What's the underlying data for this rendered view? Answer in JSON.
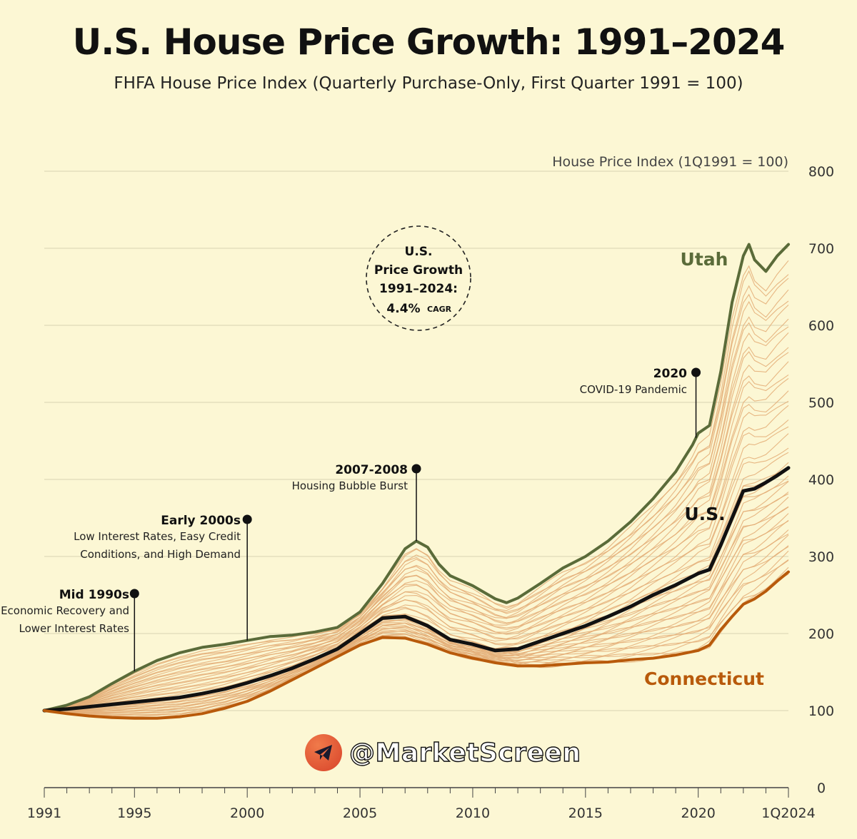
{
  "title": "U.S. House Price Growth: 1991–2024",
  "subtitle": "FHFA House Price Index (Quarterly Purchase-Only, First Quarter 1991 = 100)",
  "watermark": "@MarketScreen",
  "colors": {
    "background": "#fcf7d4",
    "us": "#111111",
    "utah": "#5a6b39",
    "connecticut": "#b85a0b",
    "states": "#e3ac74",
    "grid": "#d9d3b2"
  },
  "chart_data": {
    "type": "line",
    "title": "U.S. House Price Growth: 1991–2024",
    "ylabel": "House Price Index (1Q1991 = 100)",
    "xlabel": "",
    "xlim": [
      1991,
      2024
    ],
    "ylim": [
      0,
      800
    ],
    "yticks": [
      0,
      100,
      200,
      300,
      400,
      500,
      600,
      700,
      800
    ],
    "xticks": [
      {
        "value": 1991,
        "label": "1991"
      },
      {
        "value": 1995,
        "label": "1995"
      },
      {
        "value": 2000,
        "label": "2000"
      },
      {
        "value": 2005,
        "label": "2005"
      },
      {
        "value": 2010,
        "label": "2010"
      },
      {
        "value": 2015,
        "label": "2015"
      },
      {
        "value": 2020,
        "label": "2020"
      },
      {
        "value": 2024,
        "label": "1Q2024"
      }
    ],
    "grid": true,
    "series": [
      {
        "name": "Utah",
        "label": "Utah",
        "x": [
          1991,
          1992,
          1993,
          1994,
          1995,
          1996,
          1997,
          1998,
          1999,
          2000,
          2001,
          2002,
          2003,
          2004,
          2005,
          2006,
          2007,
          2007.5,
          2008,
          2008.5,
          2009,
          2010,
          2011,
          2011.5,
          2012,
          2013,
          2014,
          2015,
          2016,
          2017,
          2018,
          2019,
          2019.75,
          2020,
          2020.5,
          2021,
          2021.5,
          2022,
          2022.25,
          2022.5,
          2023,
          2023.5,
          2024
        ],
        "values": [
          100,
          107,
          118,
          135,
          151,
          165,
          175,
          182,
          186,
          191,
          196,
          198,
          202,
          208,
          228,
          265,
          310,
          320,
          312,
          290,
          275,
          262,
          245,
          240,
          246,
          265,
          285,
          300,
          320,
          345,
          375,
          410,
          445,
          460,
          470,
          540,
          630,
          690,
          705,
          685,
          670,
          690,
          705
        ]
      },
      {
        "name": "U.S.",
        "label": "U.S.",
        "x": [
          1991,
          1992,
          1993,
          1994,
          1995,
          1996,
          1997,
          1998,
          1999,
          2000,
          2001,
          2002,
          2003,
          2004,
          2005,
          2006,
          2007,
          2008,
          2009,
          2010,
          2011,
          2012,
          2013,
          2014,
          2015,
          2016,
          2017,
          2018,
          2019,
          2020,
          2020.5,
          2021,
          2021.5,
          2022,
          2022.5,
          2023,
          2023.5,
          2024
        ],
        "values": [
          100,
          102,
          105,
          108,
          111,
          114,
          117,
          122,
          128,
          136,
          145,
          155,
          167,
          180,
          200,
          220,
          222,
          210,
          192,
          186,
          178,
          180,
          190,
          200,
          210,
          222,
          235,
          250,
          263,
          278,
          283,
          315,
          350,
          385,
          388,
          396,
          405,
          415
        ]
      },
      {
        "name": "Connecticut",
        "label": "Connecticut",
        "x": [
          1991,
          1992,
          1993,
          1994,
          1995,
          1996,
          1997,
          1998,
          1999,
          2000,
          2001,
          2002,
          2003,
          2004,
          2005,
          2006,
          2007,
          2008,
          2009,
          2010,
          2011,
          2012,
          2013,
          2014,
          2015,
          2016,
          2017,
          2018,
          2019,
          2020,
          2020.5,
          2021,
          2021.5,
          2022,
          2022.5,
          2023,
          2023.5,
          2024
        ],
        "values": [
          100,
          96,
          93,
          91,
          90,
          90,
          92,
          96,
          103,
          112,
          125,
          140,
          155,
          170,
          185,
          195,
          194,
          186,
          175,
          168,
          162,
          158,
          158,
          160,
          162,
          163,
          166,
          168,
          172,
          178,
          185,
          205,
          222,
          238,
          245,
          255,
          268,
          280
        ]
      }
    ],
    "annotations": [
      {
        "year": 1995,
        "title": "Mid 1990s",
        "lines": [
          "Economic Recovery and",
          "Lower Interest Rates"
        ]
      },
      {
        "year": 2000,
        "title": "Early 2000s",
        "lines": [
          "Low Interest Rates, Easy Credit",
          "Conditions, and High Demand"
        ]
      },
      {
        "year": 2007.5,
        "title": "2007-2008",
        "lines": [
          "Housing Bubble Burst"
        ]
      },
      {
        "year": 2019.9,
        "title": "2020",
        "lines": [
          "COVID-19 Pandemic"
        ]
      }
    ],
    "cagr_callout": {
      "line1": "U.S.",
      "line2": "Price Growth",
      "line3": "1991–2024:",
      "value": "4.4%",
      "unit": "CAGR"
    }
  }
}
